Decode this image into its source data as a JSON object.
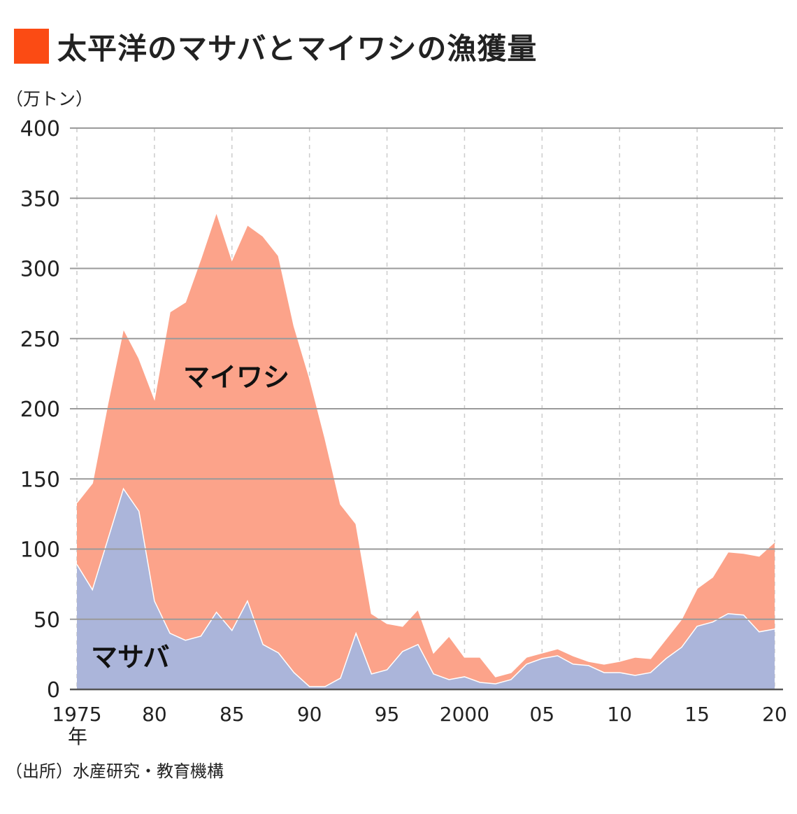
{
  "title": "太平洋のマサバとマイワシの漁獲量",
  "colors": {
    "title_square": "#fb4b14",
    "iwashi": "#fca38a",
    "saba": "#abb5da",
    "grid": "#9a9a9a",
    "vgrid": "#cccccc"
  },
  "unit_label": "（万トン）",
  "source": "（出所）水産研究・教育機構",
  "chart_data": {
    "type": "area",
    "stacked": true,
    "x": [
      1975,
      1976,
      1977,
      1978,
      1979,
      1980,
      1981,
      1982,
      1983,
      1984,
      1985,
      1986,
      1987,
      1988,
      1989,
      1990,
      1991,
      1992,
      1993,
      1994,
      1995,
      1996,
      1997,
      1998,
      1999,
      2000,
      2001,
      2002,
      2003,
      2004,
      2005,
      2006,
      2007,
      2008,
      2009,
      2010,
      2011,
      2012,
      2013,
      2014,
      2015,
      2016,
      2017,
      2018,
      2019,
      2020
    ],
    "xlim": [
      1975,
      2020
    ],
    "ylim": [
      0,
      400
    ],
    "yticks": [
      0,
      50,
      100,
      150,
      200,
      250,
      300,
      350,
      400
    ],
    "xticks": [
      {
        "value": 1975,
        "label": "1975"
      },
      {
        "value": 1980,
        "label": "80"
      },
      {
        "value": 1985,
        "label": "85"
      },
      {
        "value": 1990,
        "label": "90"
      },
      {
        "value": 1995,
        "label": "95"
      },
      {
        "value": 2000,
        "label": "2000"
      },
      {
        "value": 2005,
        "label": "05"
      },
      {
        "value": 2010,
        "label": "10"
      },
      {
        "value": 2015,
        "label": "15"
      },
      {
        "value": 2020,
        "label": "20"
      }
    ],
    "x_unit_label": "年",
    "series": [
      {
        "name": "マサバ",
        "color_key": "saba",
        "values": [
          89,
          71,
          107,
          143,
          127,
          63,
          40,
          35,
          38,
          55,
          42,
          63,
          32,
          26,
          12,
          2,
          2,
          8,
          40,
          11,
          14,
          27,
          32,
          11,
          7,
          9,
          5,
          4,
          7,
          18,
          22,
          24,
          18,
          17,
          12,
          12,
          10,
          12,
          22,
          30,
          45,
          48,
          54,
          53,
          41,
          43
        ]
      },
      {
        "name": "マイワシ",
        "color_key": "iwashi",
        "values": [
          44,
          76,
          97,
          114,
          109,
          144,
          229,
          241,
          269,
          285,
          264,
          268,
          291,
          283,
          247,
          220,
          177,
          124,
          78,
          43,
          33,
          18,
          25,
          15,
          31,
          14,
          18,
          5,
          5,
          5,
          4,
          5,
          6,
          3,
          6,
          8,
          13,
          10,
          14,
          20,
          27,
          32,
          44,
          44,
          54,
          62
        ]
      }
    ],
    "grid": true,
    "legend": "inline labels"
  }
}
